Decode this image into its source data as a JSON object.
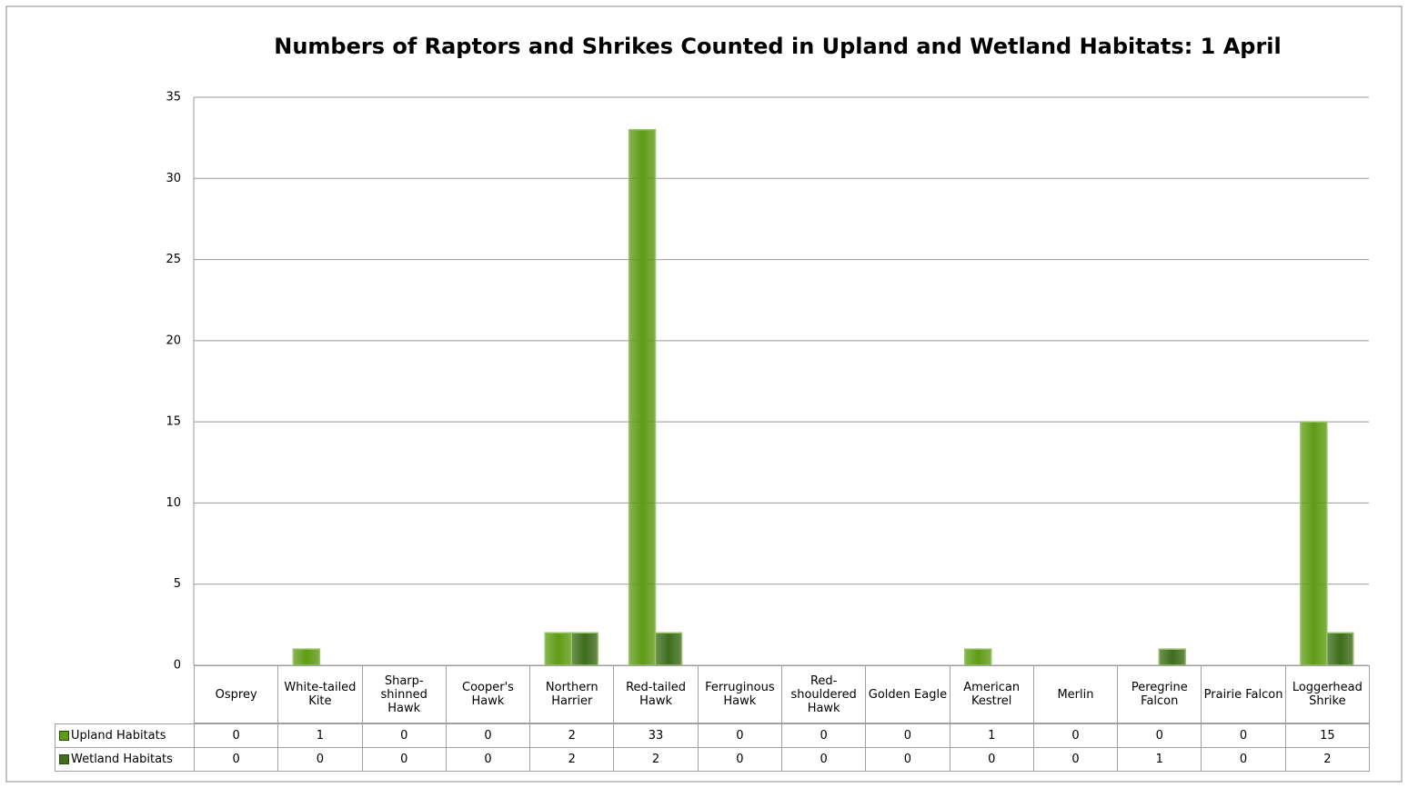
{
  "chart_data": {
    "type": "bar",
    "title": "Numbers of Raptors and Shrikes Counted in Upland and Wetland Habitats: 1 April",
    "categories": [
      "Osprey",
      "White-tailed Kite",
      "Sharp-shinned Hawk",
      "Cooper's Hawk",
      "Northern Harrier",
      "Red-tailed Hawk",
      "Ferruginous Hawk",
      "Red-shouldered Hawk",
      "Golden Eagle",
      "American Kestrel",
      "Merlin",
      "Peregrine Falcon",
      "Prairie Falcon",
      "Loggerhead Shrike"
    ],
    "series": [
      {
        "name": "Upland Habitats",
        "color": "#5e9c14",
        "values": [
          0,
          1,
          0,
          0,
          2,
          33,
          0,
          0,
          0,
          1,
          0,
          0,
          0,
          15
        ]
      },
      {
        "name": "Wetland Habitats",
        "color": "#3f6d1c",
        "values": [
          0,
          0,
          0,
          0,
          2,
          2,
          0,
          0,
          0,
          0,
          0,
          1,
          0,
          2
        ]
      }
    ],
    "ylim": [
      0,
      35
    ],
    "yticks": [
      0,
      5,
      10,
      15,
      20,
      25,
      30,
      35
    ],
    "grid": true
  }
}
